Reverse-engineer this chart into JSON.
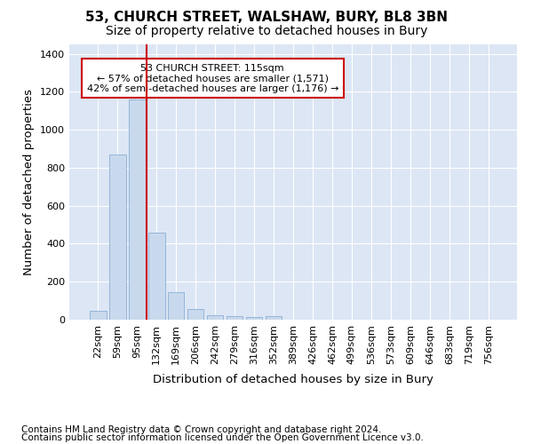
{
  "title": "53, CHURCH STREET, WALSHAW, BURY, BL8 3BN",
  "subtitle": "Size of property relative to detached houses in Bury",
  "xlabel": "Distribution of detached houses by size in Bury",
  "ylabel": "Number of detached properties",
  "footnote1": "Contains HM Land Registry data © Crown copyright and database right 2024.",
  "footnote2": "Contains public sector information licensed under the Open Government Licence v3.0.",
  "annotation_title": "53 CHURCH STREET: 115sqm",
  "annotation_line1": "← 57% of detached houses are smaller (1,571)",
  "annotation_line2": "42% of semi-detached houses are larger (1,176) →",
  "categories": [
    "22sqm",
    "59sqm",
    "95sqm",
    "132sqm",
    "169sqm",
    "206sqm",
    "242sqm",
    "279sqm",
    "316sqm",
    "352sqm",
    "389sqm",
    "426sqm",
    "462sqm",
    "499sqm",
    "536sqm",
    "573sqm",
    "609sqm",
    "646sqm",
    "683sqm",
    "719sqm",
    "756sqm"
  ],
  "values": [
    48,
    870,
    1160,
    460,
    145,
    58,
    25,
    18,
    13,
    18,
    0,
    0,
    0,
    0,
    0,
    0,
    0,
    0,
    0,
    0,
    0
  ],
  "bar_color": "#c9d9ed",
  "bar_edge_color": "#8aafd4",
  "vline_color": "#cc0000",
  "vline_x": 2.5,
  "annotation_box_color": "#cc0000",
  "ylim": [
    0,
    1450
  ],
  "yticks": [
    0,
    200,
    400,
    600,
    800,
    1000,
    1200,
    1400
  ],
  "fig_background": "#ffffff",
  "plot_background": "#dce6f5",
  "grid_color": "#ffffff",
  "title_fontsize": 11,
  "subtitle_fontsize": 10,
  "axis_label_fontsize": 9.5,
  "tick_fontsize": 8,
  "footnote_fontsize": 7.5
}
